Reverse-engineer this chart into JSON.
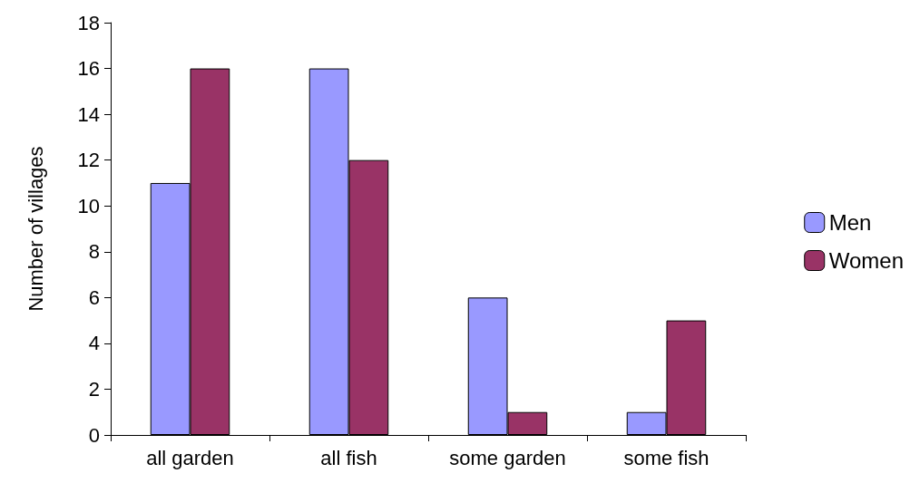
{
  "chart_data": {
    "type": "bar",
    "ylabel": "Number of villages",
    "categories": [
      "all garden",
      "all fish",
      "some garden",
      "some fish"
    ],
    "series": [
      {
        "name": "Men",
        "color": "#9999ff",
        "values": [
          11,
          16,
          6,
          1
        ]
      },
      {
        "name": "Women",
        "color": "#993366",
        "values": [
          16,
          12,
          1,
          5
        ]
      }
    ],
    "ylim": [
      0,
      18
    ],
    "yticks": [
      0,
      2,
      4,
      6,
      8,
      10,
      12,
      14,
      16,
      18
    ],
    "grid": false,
    "legend": "right"
  }
}
